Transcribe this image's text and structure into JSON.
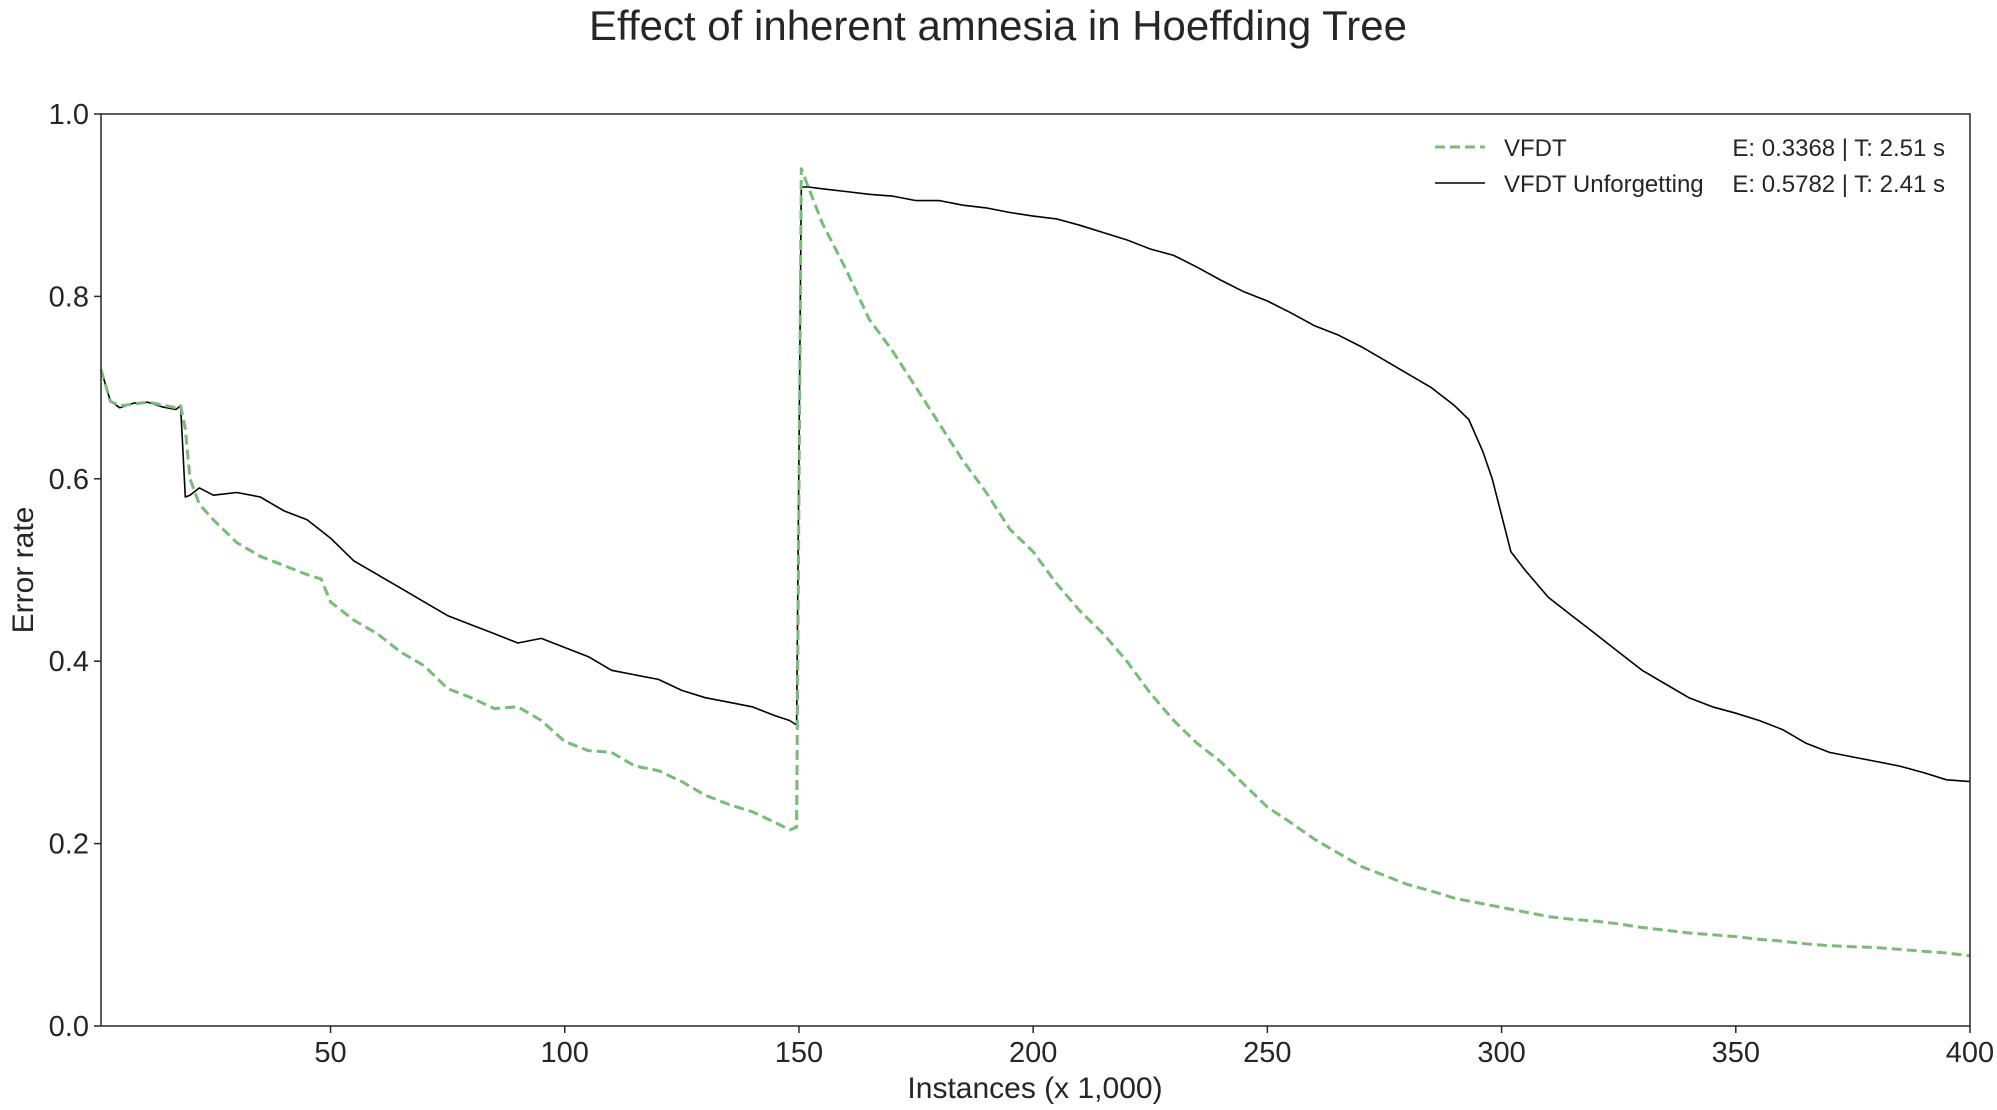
{
  "chart_data": {
    "type": "line",
    "title": "Effect of inherent amnesia in Hoeffding Tree",
    "xlabel": "Instances (x 1,000)",
    "ylabel": "Error rate",
    "xlim": [
      1,
      400
    ],
    "ylim": [
      0.0,
      1.0
    ],
    "x_ticks": [
      50,
      100,
      150,
      200,
      250,
      300,
      350,
      400
    ],
    "y_ticks": [
      0.0,
      0.2,
      0.4,
      0.6,
      0.8,
      1.0
    ],
    "x_tick_labels": [
      "50",
      "100",
      "150",
      "200",
      "250",
      "300",
      "350",
      "400"
    ],
    "y_tick_labels": [
      "0.0",
      "0.2",
      "0.4",
      "0.6",
      "0.8",
      "1.0"
    ],
    "grid": false,
    "legend_position": "top-right",
    "series": [
      {
        "name": "VFDT",
        "legend_stats": "E: 0.3368 | T: 2.51 s",
        "color": "#77bd77",
        "style": "dashed",
        "x": [
          1,
          3,
          5,
          8,
          11,
          14,
          17,
          18,
          19,
          20,
          22,
          25,
          30,
          35,
          40,
          45,
          48,
          50,
          55,
          60,
          65,
          70,
          75,
          80,
          85,
          90,
          95,
          100,
          105,
          110,
          115,
          120,
          125,
          130,
          135,
          140,
          145,
          148,
          149.5,
          150.5,
          152,
          155,
          160,
          165,
          170,
          175,
          180,
          185,
          190,
          195,
          200,
          205,
          210,
          215,
          220,
          225,
          230,
          235,
          240,
          245,
          250,
          255,
          260,
          265,
          270,
          275,
          280,
          285,
          290,
          295,
          300,
          305,
          310,
          315,
          320,
          325,
          330,
          335,
          340,
          345,
          350,
          355,
          360,
          365,
          370,
          375,
          380,
          385,
          390,
          395,
          400
        ],
        "y": [
          0.72,
          0.685,
          0.68,
          0.682,
          0.684,
          0.681,
          0.678,
          0.68,
          0.655,
          0.6,
          0.572,
          0.555,
          0.53,
          0.515,
          0.505,
          0.495,
          0.49,
          0.465,
          0.445,
          0.43,
          0.41,
          0.395,
          0.37,
          0.36,
          0.348,
          0.35,
          0.335,
          0.312,
          0.302,
          0.3,
          0.285,
          0.28,
          0.268,
          0.253,
          0.243,
          0.235,
          0.223,
          0.215,
          0.218,
          0.94,
          0.92,
          0.88,
          0.83,
          0.775,
          0.74,
          0.7,
          0.66,
          0.62,
          0.585,
          0.545,
          0.52,
          0.485,
          0.455,
          0.43,
          0.4,
          0.365,
          0.335,
          0.31,
          0.29,
          0.265,
          0.24,
          0.223,
          0.205,
          0.19,
          0.175,
          0.165,
          0.155,
          0.148,
          0.14,
          0.135,
          0.13,
          0.125,
          0.12,
          0.117,
          0.115,
          0.112,
          0.108,
          0.105,
          0.102,
          0.1,
          0.098,
          0.095,
          0.093,
          0.09,
          0.088,
          0.087,
          0.086,
          0.084,
          0.082,
          0.08,
          0.077
        ]
      },
      {
        "name": "VFDT Unforgetting",
        "legend_stats": "E: 0.5782 | T: 2.41 s",
        "color": "#000000",
        "style": "solid",
        "x": [
          1,
          3,
          5,
          8,
          11,
          14,
          17,
          18,
          19,
          20,
          22,
          25,
          30,
          35,
          40,
          45,
          50,
          55,
          60,
          65,
          70,
          75,
          80,
          85,
          90,
          95,
          100,
          105,
          110,
          115,
          120,
          125,
          130,
          135,
          140,
          145,
          148,
          149.5,
          150.5,
          152,
          155,
          160,
          165,
          170,
          175,
          180,
          185,
          190,
          195,
          200,
          205,
          210,
          215,
          220,
          225,
          230,
          235,
          240,
          245,
          250,
          255,
          260,
          265,
          270,
          275,
          280,
          285,
          290,
          293,
          296,
          298,
          300,
          302,
          305,
          310,
          315,
          320,
          325,
          330,
          335,
          340,
          345,
          350,
          355,
          360,
          365,
          370,
          375,
          380,
          385,
          390,
          395,
          400
        ],
        "y": [
          0.72,
          0.685,
          0.678,
          0.683,
          0.684,
          0.679,
          0.676,
          0.68,
          0.58,
          0.582,
          0.59,
          0.582,
          0.585,
          0.58,
          0.565,
          0.555,
          0.535,
          0.51,
          0.495,
          0.48,
          0.465,
          0.45,
          0.44,
          0.43,
          0.42,
          0.425,
          0.415,
          0.405,
          0.39,
          0.385,
          0.38,
          0.368,
          0.36,
          0.355,
          0.35,
          0.34,
          0.335,
          0.33,
          0.92,
          0.92,
          0.918,
          0.915,
          0.912,
          0.91,
          0.905,
          0.905,
          0.9,
          0.897,
          0.892,
          0.888,
          0.885,
          0.878,
          0.87,
          0.862,
          0.852,
          0.845,
          0.832,
          0.818,
          0.805,
          0.795,
          0.782,
          0.768,
          0.758,
          0.745,
          0.73,
          0.715,
          0.7,
          0.68,
          0.665,
          0.63,
          0.6,
          0.56,
          0.52,
          0.5,
          0.47,
          0.45,
          0.43,
          0.41,
          0.39,
          0.375,
          0.36,
          0.35,
          0.343,
          0.335,
          0.325,
          0.31,
          0.3,
          0.295,
          0.29,
          0.285,
          0.278,
          0.27,
          0.268
        ]
      }
    ]
  }
}
